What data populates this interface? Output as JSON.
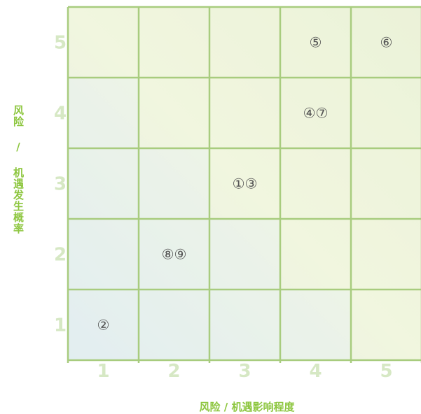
{
  "chart_data": {
    "type": "heatmap",
    "xlabel": "风险 / 机遇影响程度",
    "ylabel": "风险 / 机遇发生概率",
    "x_ticks": [
      "1",
      "2",
      "3",
      "4",
      "5"
    ],
    "y_ticks": [
      "1",
      "2",
      "3",
      "4",
      "5"
    ],
    "xlim": [
      1,
      5
    ],
    "ylim": [
      1,
      5
    ],
    "grid": true,
    "colors": {
      "grid_line": "#a8cc7e",
      "tick_label": "#d6e8c4",
      "axis_label": "#8dc63f",
      "marker": "#555555",
      "cell_low": "#e3efef",
      "cell_high": "#eef3d6"
    },
    "points": [
      {
        "label": "②",
        "x": 1,
        "y": 1
      },
      {
        "label": "⑧⑨",
        "x": 2,
        "y": 2
      },
      {
        "label": "①③",
        "x": 3,
        "y": 3
      },
      {
        "label": "④⑦",
        "x": 4,
        "y": 4
      },
      {
        "label": "⑤",
        "x": 4,
        "y": 5
      },
      {
        "label": "⑥",
        "x": 5,
        "y": 5
      }
    ]
  }
}
